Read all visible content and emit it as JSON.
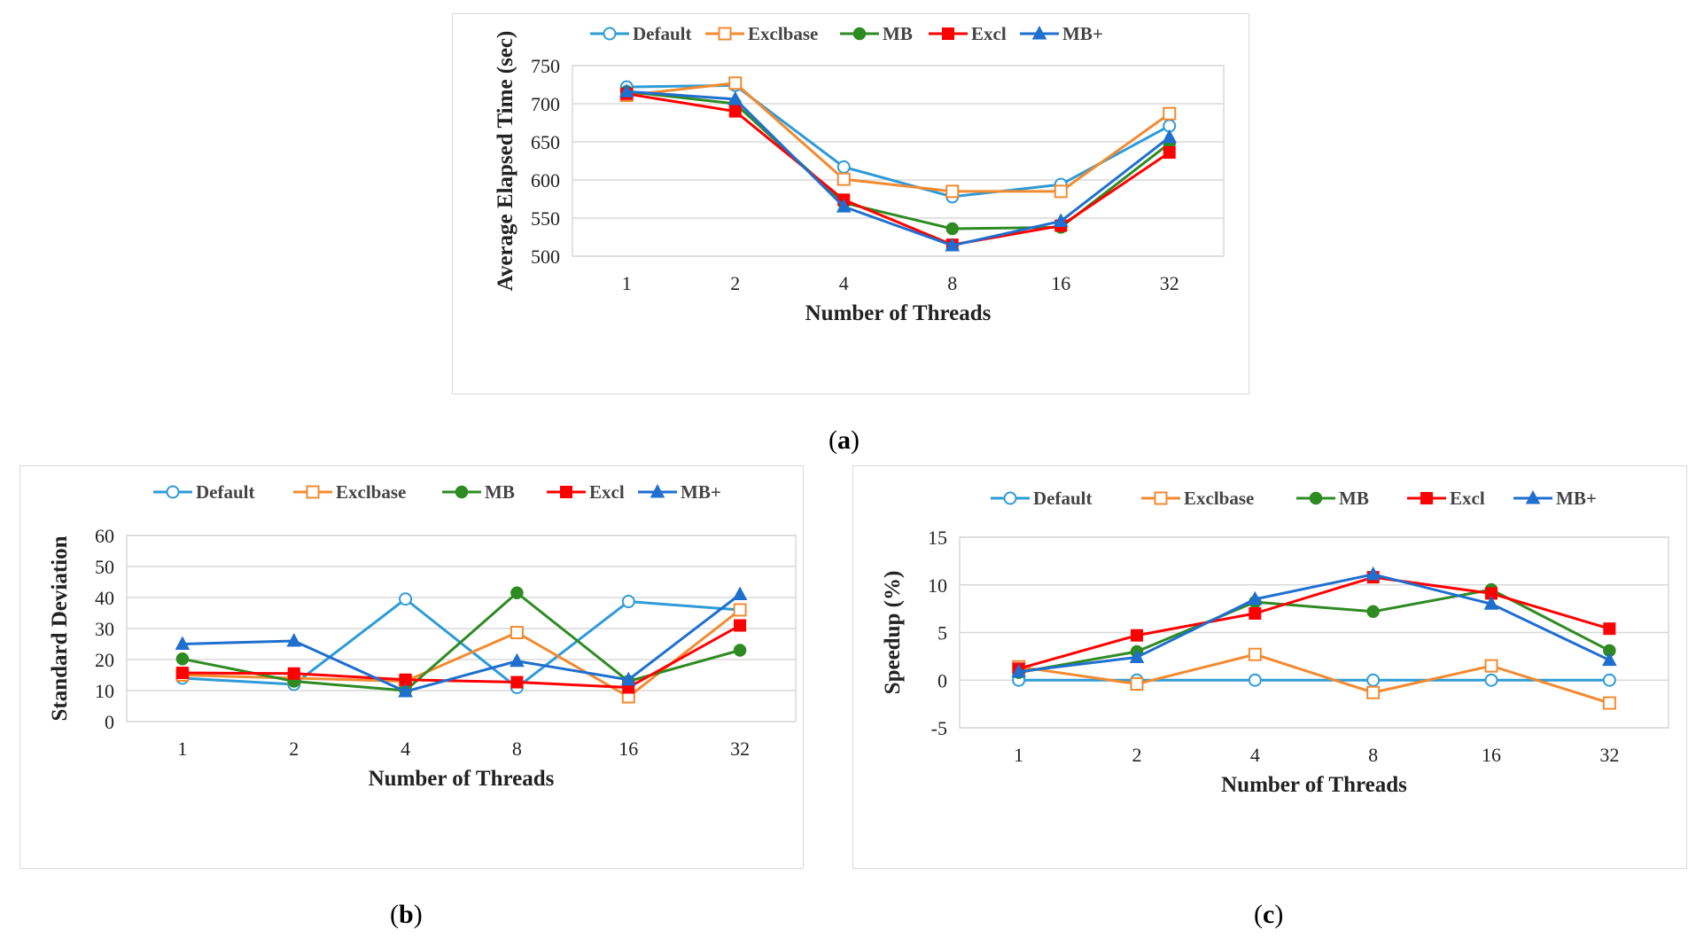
{
  "colors": {
    "Default": "#2e9bd6",
    "Exclbase": "#f28a30",
    "MB": "#2e8b22",
    "Excl": "#ff0000",
    "MB+": "#1f6fcf",
    "grid": "#d9d9d9"
  },
  "chart_data": [
    {
      "id": "a",
      "caption_letter": "a",
      "type": "line",
      "ylabel": "Average Elapsed Time (sec)",
      "xlabel": "Number of Threads",
      "categories": [
        "1",
        "2",
        "4",
        "8",
        "16",
        "32"
      ],
      "ylim": [
        500,
        750
      ],
      "yticks": [
        500,
        550,
        600,
        650,
        700,
        750
      ],
      "series": [
        {
          "name": "Default",
          "marker": "circle-open",
          "values": [
            722,
            724,
            617,
            578,
            594,
            671
          ]
        },
        {
          "name": "Exclbase",
          "marker": "square-open",
          "values": [
            711,
            727,
            601,
            585,
            585,
            687
          ]
        },
        {
          "name": "MB",
          "marker": "circle-filled",
          "values": [
            716,
            700,
            570,
            536,
            538,
            648
          ]
        },
        {
          "name": "Excl",
          "marker": "square-filled",
          "values": [
            713,
            690,
            574,
            515,
            540,
            636
          ]
        },
        {
          "name": "MB+",
          "marker": "triangle-filled",
          "values": [
            716,
            706,
            565,
            514,
            546,
            656
          ]
        }
      ]
    },
    {
      "id": "b",
      "caption_letter": "b",
      "type": "line",
      "ylabel": "Standard Deviation",
      "xlabel": "Number of Threads",
      "categories": [
        "1",
        "2",
        "4",
        "8",
        "16",
        "32"
      ],
      "ylim": [
        0,
        60
      ],
      "yticks": [
        0,
        10,
        20,
        30,
        40,
        50,
        60
      ],
      "series": [
        {
          "name": "Default",
          "marker": "circle-open",
          "values": [
            14,
            12,
            39.5,
            11,
            38.7,
            36
          ]
        },
        {
          "name": "Exclbase",
          "marker": "square-open",
          "values": [
            15,
            14,
            13,
            28.7,
            8,
            36
          ]
        },
        {
          "name": "MB",
          "marker": "circle-filled",
          "values": [
            20.2,
            13,
            10,
            41.5,
            13,
            23
          ]
        },
        {
          "name": "Excl",
          "marker": "square-filled",
          "values": [
            15.7,
            15.5,
            13.5,
            12.7,
            11,
            31
          ]
        },
        {
          "name": "MB+",
          "marker": "triangle-filled",
          "values": [
            25,
            26,
            9.7,
            19.5,
            13.5,
            41
          ]
        }
      ]
    },
    {
      "id": "c",
      "caption_letter": "c",
      "type": "line",
      "ylabel": "Speedup (%)",
      "xlabel": "Number of Threads",
      "categories": [
        "1",
        "2",
        "4",
        "8",
        "16",
        "32"
      ],
      "ylim": [
        -5,
        15
      ],
      "yticks": [
        -5,
        0,
        5,
        10,
        15
      ],
      "series": [
        {
          "name": "Default",
          "marker": "circle-open",
          "values": [
            0,
            0,
            0,
            0,
            0,
            0
          ]
        },
        {
          "name": "Exclbase",
          "marker": "square-open",
          "values": [
            1.4,
            -0.4,
            2.7,
            -1.3,
            1.5,
            -2.4
          ]
        },
        {
          "name": "MB",
          "marker": "circle-filled",
          "values": [
            0.8,
            3,
            8.2,
            7.2,
            9.5,
            3.1
          ]
        },
        {
          "name": "Excl",
          "marker": "square-filled",
          "values": [
            1.2,
            4.7,
            7,
            10.8,
            9.1,
            5.4
          ]
        },
        {
          "name": "MB+",
          "marker": "triangle-filled",
          "values": [
            0.9,
            2.4,
            8.5,
            11.1,
            8,
            2.1
          ]
        }
      ]
    }
  ]
}
